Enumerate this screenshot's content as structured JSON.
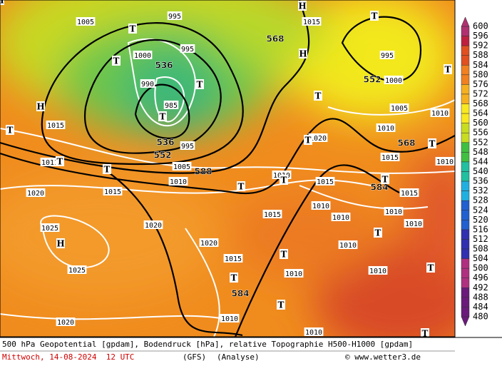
{
  "colorbar": {
    "levels": [
      600,
      596,
      592,
      588,
      584,
      580,
      576,
      572,
      568,
      564,
      560,
      556,
      552,
      548,
      544,
      540,
      536,
      532,
      528,
      524,
      520,
      516,
      512,
      508,
      504,
      500,
      496,
      492,
      488,
      484,
      480
    ]
  },
  "map": {
    "labels": [
      "536",
      "536",
      "552",
      "552",
      "568",
      "568",
      "584",
      "584",
      "588",
      "1005",
      "1000",
      "995",
      "995",
      "990",
      "985",
      "995",
      "1005",
      "1010",
      "1015",
      "1011",
      "1015",
      "1020",
      "1025",
      "1025",
      "1020",
      "1020",
      "1015",
      "1020",
      "1010",
      "1010",
      "1015",
      "995",
      "1000",
      "1005",
      "1010",
      "1015",
      "1020",
      "1010",
      "1015",
      "1015",
      "1010",
      "1010",
      "1015",
      "1010",
      "1010",
      "1010",
      "1010",
      "1010",
      "1010",
      "1010",
      "H",
      "T",
      "T",
      "T",
      "H",
      "T",
      "T",
      "T",
      "T",
      "T",
      "T",
      "T",
      "H",
      "T",
      "T",
      "T",
      "T",
      "T",
      "T",
      "T",
      "T",
      "T",
      "T",
      "T",
      "H",
      "H"
    ]
  },
  "footer": {
    "description": "500 hPa Geopotential [gpdam], Bodendruck [hPa], relative Topographie H500-H1000 [gpdam]",
    "date": "Mittwoch, 14-08-2024  12 UTC",
    "model": "(GFS)",
    "run": "(Analyse)",
    "credit": "© www.wetter3.de"
  }
}
